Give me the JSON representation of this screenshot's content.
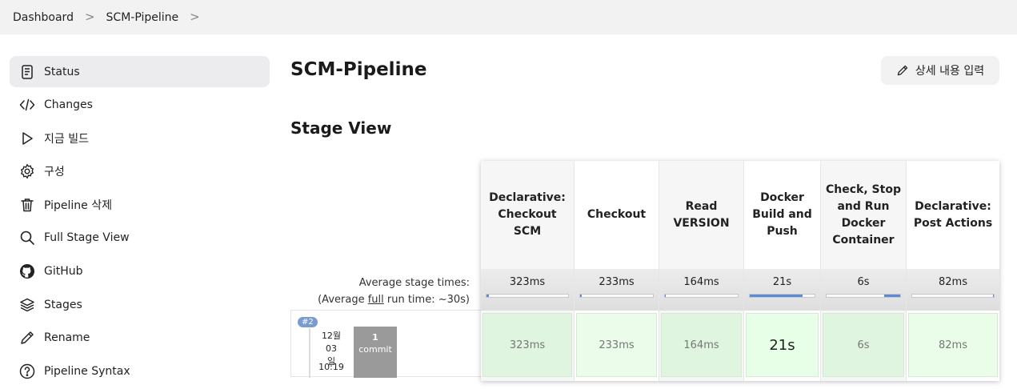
{
  "breadcrumb": {
    "items": [
      "Dashboard",
      "SCM-Pipeline"
    ],
    "separator": ">"
  },
  "sidebar": {
    "items": [
      {
        "label": "Status",
        "icon": "document-icon",
        "active": true
      },
      {
        "label": "Changes",
        "icon": "code-icon"
      },
      {
        "label": "지금 빌드",
        "icon": "play-icon"
      },
      {
        "label": "구성",
        "icon": "gear-icon"
      },
      {
        "label": "Pipeline 삭제",
        "icon": "trash-icon"
      },
      {
        "label": "Full Stage View",
        "icon": "search-icon"
      },
      {
        "label": "GitHub",
        "icon": "github-icon"
      },
      {
        "label": "Stages",
        "icon": "layers-icon"
      },
      {
        "label": "Rename",
        "icon": "pencil-icon"
      },
      {
        "label": "Pipeline Syntax",
        "icon": "help-icon"
      }
    ]
  },
  "main": {
    "title": "SCM-Pipeline",
    "edit_description_label": "상세 내용 입력",
    "stage_view_title": "Stage View",
    "avg_stage_times_label": "Average stage times:",
    "avg_run_prefix": "(Average ",
    "avg_run_link": "full",
    "avg_run_suffix": " run time: ~30s)"
  },
  "build": {
    "number": "#2",
    "date_line1": "12월 03",
    "date_line2": "일",
    "time": "10:19",
    "commit_count": "1",
    "commit_label": "commit"
  },
  "stages": [
    {
      "name": "Declarative: Checkout SCM",
      "avg": "323ms",
      "avg_fraction": 0.03,
      "cell": "323ms",
      "cell_color": "#dff5df",
      "big": false
    },
    {
      "name": "Checkout",
      "avg": "233ms",
      "avg_fraction": 0.02,
      "cell": "233ms",
      "cell_color": "#ebfceb",
      "big": false
    },
    {
      "name": "Read VERSION",
      "avg": "164ms",
      "avg_fraction": 0.01,
      "cell": "164ms",
      "cell_color": "#dff5df",
      "big": false
    },
    {
      "name": "Docker Build and Push",
      "avg": "21s",
      "avg_fraction": 0.82,
      "cell": "21s",
      "cell_color": "#e6ffe6",
      "big": true
    },
    {
      "name": "Check, Stop and Run Docker Container",
      "avg": "6s",
      "avg_fraction": 0.22,
      "cell": "6s",
      "cell_color": "#dff5df",
      "big": false
    },
    {
      "name": "Declarative: Post Actions",
      "avg": "82ms",
      "avg_fraction": 0.01,
      "cell": "82ms",
      "cell_color": "#e9fde9",
      "big": false
    }
  ],
  "colors": {
    "success_cell": "#dff5df",
    "progress": "#5b8bd6",
    "commit_box": "#9a9a9a",
    "build_badge": "#7a9bd0"
  }
}
